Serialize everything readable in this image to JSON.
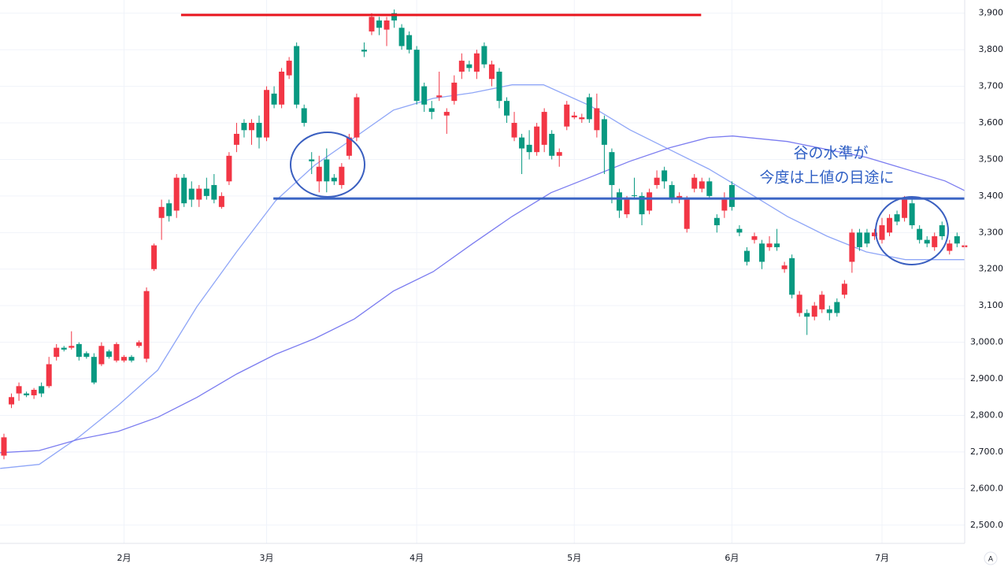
{
  "chart_data": {
    "type": "candlestick",
    "categories": [
      null,
      null,
      null,
      null,
      null,
      null,
      null,
      null,
      null,
      null,
      null,
      null,
      null,
      null,
      null,
      null,
      "2月",
      null,
      null,
      null,
      null,
      null,
      null,
      null,
      null,
      null,
      null,
      null,
      null,
      null,
      null,
      null,
      null,
      null,
      null,
      "3月",
      null,
      null,
      null,
      null,
      null,
      null,
      null,
      null,
      null,
      null,
      null,
      null,
      null,
      null,
      null,
      null,
      null,
      null,
      null,
      "4月",
      null,
      null,
      null,
      null,
      null,
      null,
      null,
      null,
      null,
      null,
      null,
      null,
      null,
      null,
      null,
      null,
      null,
      null,
      null,
      null,
      "5月",
      null,
      null,
      null,
      null,
      null,
      null,
      null,
      null,
      null,
      null,
      null,
      null,
      null,
      null,
      null,
      null,
      null,
      null,
      null,
      null,
      "6月",
      null,
      null,
      null,
      null,
      null,
      null,
      null,
      null,
      null,
      null,
      null,
      null,
      null,
      null,
      null,
      null,
      null,
      null,
      null,
      "7月",
      null,
      null,
      null,
      null,
      null,
      null,
      null,
      null,
      null,
      null,
      null
    ],
    "open": [
      2690,
      2830,
      2860,
      2860,
      2855,
      2880,
      2880,
      2960,
      2985,
      2985,
      2995,
      2970,
      2960,
      2940,
      2975,
      2950,
      2950,
      2960,
      2990,
      2955,
      3200,
      3340,
      3380,
      3360,
      3450,
      3420,
      3390,
      3420,
      3430,
      3370,
      3440,
      3540,
      3600,
      3580,
      3600,
      3560,
      3680,
      3650,
      3730,
      3810,
      3640,
      3500,
      3440,
      3500,
      3450,
      3430,
      3510,
      3560,
      3800,
      3850,
      3880,
      3855,
      3900,
      3860,
      3840,
      3800,
      3700,
      3640,
      3670,
      3620,
      3660,
      3740,
      3760,
      3740,
      3810,
      3720,
      3740,
      3660,
      3560,
      3560,
      3540,
      3520,
      3540,
      3570,
      3510,
      3590,
      3615,
      3610,
      3670,
      3580,
      3610,
      3520,
      3410,
      3350,
      3402,
      3400,
      3360,
      3430,
      3470,
      3430,
      3390,
      3310,
      3420,
      3420,
      3440,
      3340,
      3360,
      3430,
      3310,
      3250,
      3280,
      3270,
      3260,
      3270,
      3200,
      3230,
      3080,
      3080,
      3070,
      3090,
      3090,
      3110,
      3130,
      3220,
      3300,
      3300,
      3290,
      3280,
      3300,
      3350,
      3340,
      3380,
      3310,
      3280,
      3260,
      3320,
      3250,
      3290,
      3260
    ],
    "high": [
      2750,
      2860,
      2890,
      2865,
      2875,
      2890,
      2960,
      2995,
      2990,
      3030,
      3000,
      2975,
      2970,
      3000,
      2980,
      3000,
      2965,
      2965,
      3005,
      3150,
      3270,
      3390,
      3390,
      3460,
      3460,
      3440,
      3430,
      3450,
      3460,
      3410,
      3520,
      3600,
      3610,
      3610,
      3620,
      3700,
      3700,
      3750,
      3780,
      3820,
      3650,
      3520,
      3510,
      3530,
      3460,
      3490,
      3570,
      3680,
      3820,
      3900,
      3890,
      3890,
      3910,
      3870,
      3850,
      3810,
      3710,
      3660,
      3740,
      3640,
      3730,
      3790,
      3770,
      3800,
      3820,
      3770,
      3750,
      3670,
      3630,
      3570,
      3580,
      3600,
      3640,
      3580,
      3530,
      3660,
      3630,
      3625,
      3680,
      3680,
      3620,
      3530,
      3420,
      3400,
      3450,
      3410,
      3420,
      3470,
      3480,
      3440,
      3410,
      3400,
      3460,
      3450,
      3450,
      3350,
      3410,
      3440,
      3320,
      3260,
      3300,
      3280,
      3290,
      3310,
      3220,
      3240,
      3140,
      3090,
      3110,
      3140,
      3100,
      3120,
      3170,
      3310,
      3310,
      3310,
      3310,
      3340,
      3350,
      3360,
      3400,
      3390,
      3320,
      3290,
      3300,
      3330,
      3280,
      3300,
      3275
    ],
    "low": [
      2680,
      2820,
      2840,
      2850,
      2845,
      2850,
      2875,
      2950,
      2975,
      2980,
      2950,
      2955,
      2885,
      2935,
      2955,
      2945,
      2945,
      2945,
      2985,
      2945,
      3195,
      3280,
      3330,
      3340,
      3370,
      3370,
      3370,
      3390,
      3380,
      3365,
      3430,
      3520,
      3560,
      3540,
      3530,
      3550,
      3640,
      3640,
      3720,
      3640,
      3590,
      3460,
      3410,
      3410,
      3430,
      3420,
      3500,
      3550,
      3780,
      3840,
      3840,
      3810,
      3860,
      3800,
      3790,
      3650,
      3630,
      3610,
      3660,
      3570,
      3650,
      3720,
      3740,
      3720,
      3750,
      3700,
      3640,
      3600,
      3550,
      3460,
      3500,
      3510,
      3520,
      3500,
      3480,
      3580,
      3610,
      3600,
      3600,
      3560,
      3460,
      3380,
      3340,
      3340,
      3390,
      3320,
      3350,
      3420,
      3420,
      3380,
      3380,
      3300,
      3410,
      3410,
      3390,
      3300,
      3340,
      3360,
      3290,
      3210,
      3270,
      3200,
      3250,
      3250,
      3190,
      3120,
      3070,
      3020,
      3060,
      3080,
      3060,
      3070,
      3120,
      3190,
      3250,
      3260,
      3280,
      3270,
      3290,
      3320,
      3330,
      3310,
      3270,
      3260,
      3250,
      3280,
      3240,
      3260,
      3255
    ],
    "close": [
      2740,
      2850,
      2880,
      2855,
      2870,
      2860,
      2940,
      2985,
      2980,
      2990,
      2960,
      2960,
      2890,
      2990,
      2960,
      2995,
      2960,
      2950,
      3000,
      3140,
      3265,
      3370,
      3345,
      3450,
      3380,
      3390,
      3420,
      3400,
      3390,
      3400,
      3510,
      3570,
      3580,
      3600,
      3560,
      3690,
      3650,
      3740,
      3770,
      3650,
      3600,
      3495,
      3480,
      3440,
      3440,
      3480,
      3560,
      3670,
      3795,
      3890,
      3860,
      3880,
      3880,
      3810,
      3800,
      3660,
      3650,
      3630,
      3675,
      3630,
      3710,
      3770,
      3750,
      3790,
      3760,
      3760,
      3660,
      3620,
      3600,
      3530,
      3520,
      3590,
      3630,
      3510,
      3520,
      3650,
      3620,
      3615,
      3610,
      3640,
      3540,
      3430,
      3360,
      3390,
      3400,
      3350,
      3410,
      3450,
      3440,
      3390,
      3400,
      3390,
      3450,
      3440,
      3400,
      3320,
      3390,
      3370,
      3300,
      3220,
      3290,
      3220,
      3270,
      3260,
      3210,
      3130,
      3130,
      3070,
      3100,
      3130,
      3080,
      3080,
      3160,
      3300,
      3260,
      3270,
      3300,
      3320,
      3340,
      3330,
      3390,
      3320,
      3280,
      3270,
      3290,
      3290,
      3270,
      3270,
      3265
    ],
    "up_color": "#f23645",
    "down_color": "#089981",
    "moving_averages": [
      {
        "color": "#8fa6f7",
        "x": [
          -0.5,
          4.7,
          10,
          15.2,
          20.5,
          25.7,
          31,
          36.2,
          41.4,
          46.7,
          51.9,
          57.2,
          62.4,
          67.7,
          71.9,
          78.2,
          83.4,
          88.7,
          93.9,
          99.2,
          104.4,
          109.7,
          114.9,
          120.1,
          128
        ],
        "values": [
          2655,
          2666,
          2741,
          2827,
          2924,
          3097,
          3247,
          3387,
          3484,
          3560,
          3635,
          3667,
          3682,
          3704,
          3704,
          3646,
          3581,
          3527,
          3474,
          3409,
          3344,
          3290,
          3247,
          3226,
          3226
        ]
      },
      {
        "color": "#7b7cf0",
        "x": [
          -0.5,
          4.7,
          10,
          15.2,
          20.5,
          25.7,
          31,
          36.2,
          41.4,
          46.7,
          51.9,
          57.2,
          62.4,
          67.7,
          72.9,
          78.2,
          83.4,
          88.7,
          93.9,
          97.1,
          104.4,
          114.9,
          125.4,
          128
        ],
        "values": [
          2698,
          2704,
          2735,
          2756,
          2795,
          2849,
          2913,
          2967,
          3010,
          3064,
          3140,
          3193,
          3269,
          3344,
          3409,
          3452,
          3495,
          3532,
          3560,
          3564,
          3549,
          3506,
          3441,
          3415
        ]
      }
    ],
    "levels": [
      {
        "value": 3895,
        "from": 23.6,
        "to": 92.9,
        "color": "#e8141c"
      },
      {
        "value": 3393,
        "from": 35.9,
        "to": 128,
        "color": "#3a64c4"
      }
    ],
    "annotations": [
      "谷の水準が",
      "今度は上値の目途に"
    ],
    "badge": "A",
    "ylim": [
      2450,
      3936
    ],
    "yticks": [
      {
        "value": 2500,
        "label": "2,500.0"
      },
      {
        "value": 2600,
        "label": "2,600.0"
      },
      {
        "value": 2700,
        "label": "2,700.0"
      },
      {
        "value": 2800,
        "label": "2,800.0"
      },
      {
        "value": 2900,
        "label": "2,900.0"
      },
      {
        "value": 3000,
        "label": "3,000.0"
      },
      {
        "value": 3100,
        "label": "3,100"
      },
      {
        "value": 3200,
        "label": "3,200"
      },
      {
        "value": 3300,
        "label": "3,300"
      },
      {
        "value": 3400,
        "label": "3,400"
      },
      {
        "value": 3500,
        "label": "3,500"
      },
      {
        "value": 3600,
        "label": "3,600"
      },
      {
        "value": 3700,
        "label": "3,700"
      },
      {
        "value": 3800,
        "label": "3,800"
      },
      {
        "value": 3900,
        "label": "3,900"
      }
    ],
    "grid": true
  }
}
